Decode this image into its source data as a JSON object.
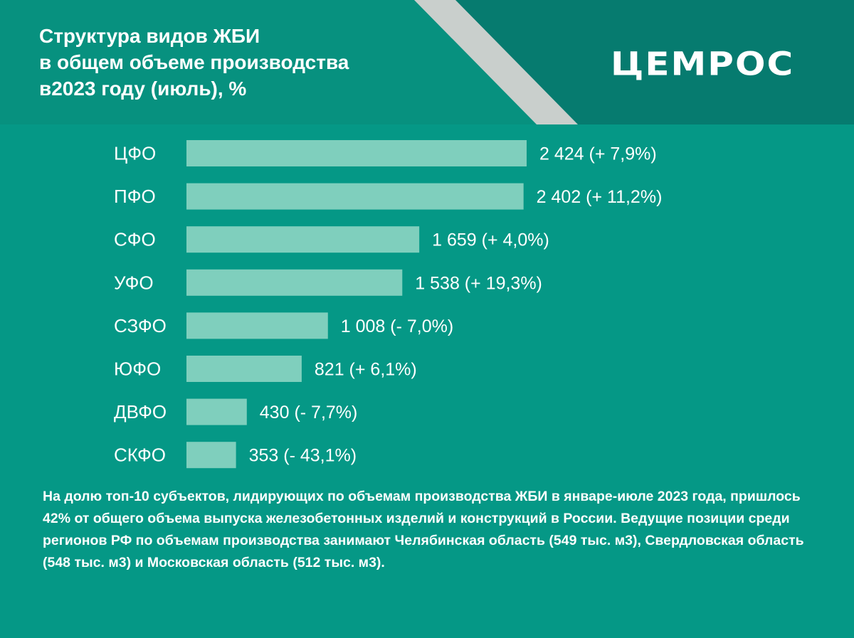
{
  "header": {
    "title_lines": [
      "Структура видов ЖБИ",
      "в общем объеме производства",
      "в2023 году (июль), %"
    ],
    "logo_text": "ЦЕМРОС"
  },
  "colors": {
    "background": "#059886",
    "header_dark": "#067b6f",
    "diagonal_stripe": "#c9cfcc",
    "bar_fill": "#7fcfbd",
    "text": "#ffffff"
  },
  "chart_data": {
    "type": "bar",
    "orientation": "horizontal",
    "categories": [
      "ЦФО",
      "ПФО",
      "СФО",
      "УФО",
      "СЗФО",
      "ЮФО",
      "ДВФО",
      "СКФО"
    ],
    "values": [
      2424,
      2402,
      1659,
      1538,
      1008,
      821,
      430,
      353
    ],
    "data_labels": [
      "2 424 (+ 7,9%)",
      "2 402 (+ 11,2%)",
      "1 659 (+ 4,0%)",
      "1 538 (+ 19,3%)",
      "1 008 (- 7,0%)",
      "821 (+ 6,1%)",
      "430 (- 7,7%)",
      "353 (- 43,1%)"
    ],
    "title": "",
    "xlabel": "",
    "ylabel": "",
    "xlim": [
      0,
      2424
    ],
    "grid": false,
    "legend": "none"
  },
  "note": {
    "text": "На долю топ-10 субъектов, лидирующих по объемам производства ЖБИ в январе-июле 2023 года, пришлось 42% от общего объема выпуска железобетонных изделий и конструкций в России. Ведущие позиции среди регионов РФ по объемам производства занимают Челябинская область (549 тыс. м3), Свердловская область (548 тыс. м3) и Московская область (512 тыс. м3)."
  }
}
